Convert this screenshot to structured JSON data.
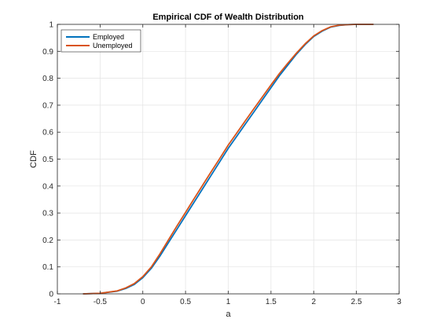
{
  "chart_data": {
    "type": "line",
    "title": "Empirical CDF of Wealth Distribution",
    "xlabel": "a",
    "ylabel": "CDF",
    "xlim": [
      -1,
      3
    ],
    "ylim": [
      0,
      1
    ],
    "xticks": [
      -1,
      -0.5,
      0,
      0.5,
      1,
      1.5,
      2,
      2.5,
      3
    ],
    "xtick_labels": [
      "-1",
      "-0.5",
      "0",
      "0.5",
      "1",
      "1.5",
      "2",
      "2.5",
      "3"
    ],
    "yticks": [
      0,
      0.1,
      0.2,
      0.3,
      0.4,
      0.5,
      0.6,
      0.7,
      0.8,
      0.9,
      1
    ],
    "ytick_labels": [
      "0",
      "0.1",
      "0.2",
      "0.3",
      "0.4",
      "0.5",
      "0.6",
      "0.7",
      "0.8",
      "0.9",
      "1"
    ],
    "grid": true,
    "legend_position": "top-left",
    "series": [
      {
        "name": "Employed",
        "color": "#0072BD",
        "x": [
          -0.7,
          -0.5,
          -0.3,
          -0.2,
          -0.1,
          0,
          0.1,
          0.2,
          0.3,
          0.4,
          0.5,
          0.6,
          0.7,
          0.8,
          0.9,
          1.0,
          1.1,
          1.2,
          1.3,
          1.4,
          1.5,
          1.6,
          1.7,
          1.8,
          1.9,
          2.0,
          2.1,
          2.2,
          2.3,
          2.4,
          2.5,
          2.6,
          2.7
        ],
        "y": [
          0,
          0.002,
          0.01,
          0.02,
          0.035,
          0.06,
          0.095,
          0.14,
          0.19,
          0.24,
          0.29,
          0.34,
          0.39,
          0.44,
          0.49,
          0.54,
          0.585,
          0.63,
          0.675,
          0.72,
          0.765,
          0.81,
          0.85,
          0.89,
          0.925,
          0.955,
          0.975,
          0.99,
          0.996,
          0.999,
          1,
          1,
          1
        ]
      },
      {
        "name": "Unemployed",
        "color": "#D95319",
        "x": [
          -0.7,
          -0.5,
          -0.3,
          -0.2,
          -0.1,
          0,
          0.1,
          0.2,
          0.3,
          0.4,
          0.5,
          0.6,
          0.7,
          0.8,
          0.9,
          1.0,
          1.1,
          1.2,
          1.3,
          1.4,
          1.5,
          1.6,
          1.7,
          1.8,
          1.9,
          2.0,
          2.1,
          2.2,
          2.3,
          2.4,
          2.5,
          2.6,
          2.7
        ],
        "y": [
          0,
          0.002,
          0.011,
          0.022,
          0.038,
          0.064,
          0.1,
          0.148,
          0.2,
          0.252,
          0.302,
          0.353,
          0.403,
          0.453,
          0.502,
          0.552,
          0.597,
          0.642,
          0.687,
          0.731,
          0.775,
          0.818,
          0.857,
          0.894,
          0.928,
          0.957,
          0.977,
          0.991,
          0.997,
          0.999,
          1,
          1,
          1
        ]
      }
    ]
  }
}
